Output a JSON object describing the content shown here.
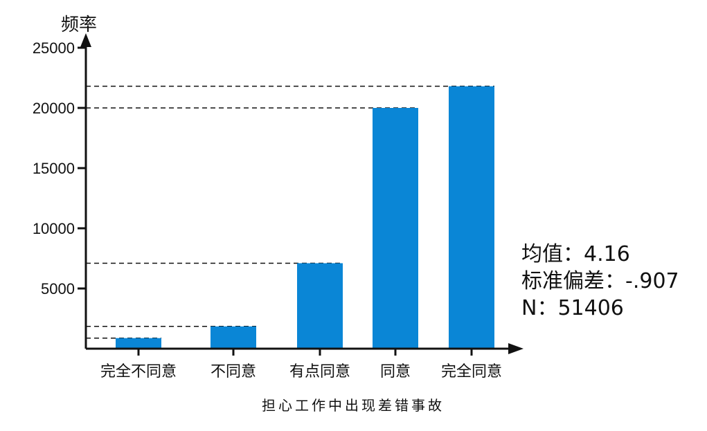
{
  "chart_data": {
    "type": "bar",
    "categories": [
      "完全不同意",
      "不同意",
      "有点同意",
      "同意",
      "完全同意"
    ],
    "values": [
      880,
      1850,
      7100,
      20000,
      21800
    ],
    "ylabel": "频率",
    "xlabel": "担心工作中出现差错事故",
    "ylim": [
      0,
      25000
    ],
    "yticks": [
      5000,
      10000,
      15000,
      20000,
      25000
    ],
    "ytick_labels": [
      "5000",
      "10000",
      "15000",
      "20000",
      "25000"
    ],
    "grid": false,
    "bar_color": "#0a86d6",
    "reference_lines": "dashed line from y-axis to top of each bar"
  },
  "stats": {
    "mean": "均值：4.16",
    "std": "标准偏差：-.907",
    "n": "N：51406"
  }
}
